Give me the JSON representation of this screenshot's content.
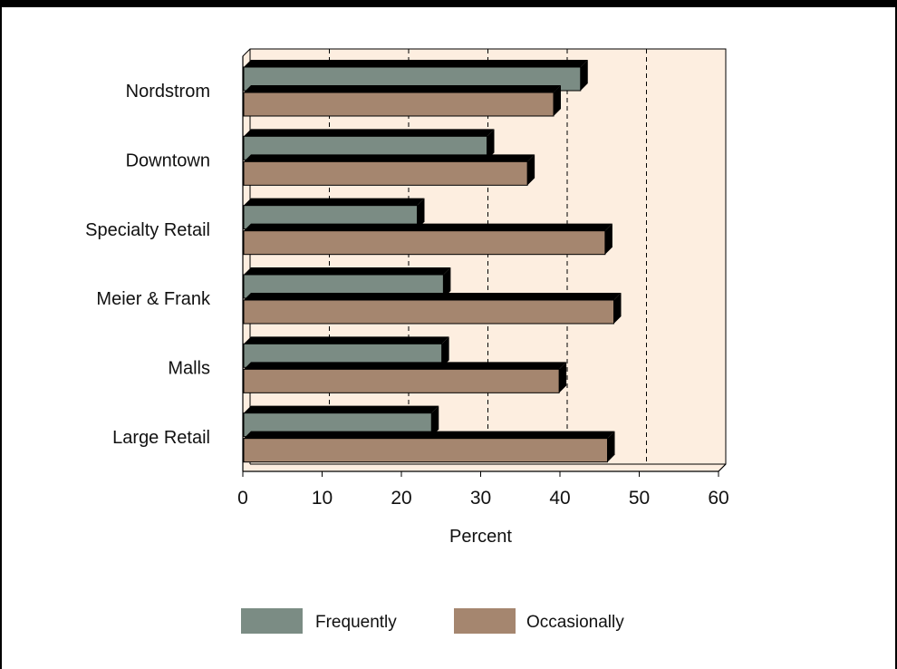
{
  "chart_data": {
    "type": "bar",
    "orientation": "horizontal",
    "categories": [
      "Nordstrom",
      "Downtown",
      "Specialty Retail",
      "Meier & Frank",
      "Malls",
      "Large Retail"
    ],
    "series": [
      {
        "name": "Frequently",
        "values": [
          42.6,
          30.8,
          22.0,
          25.3,
          25.1,
          23.8
        ],
        "color": "#7b8c84"
      },
      {
        "name": "Occasionally",
        "values": [
          39.2,
          35.9,
          45.7,
          46.8,
          39.9,
          46.0
        ],
        "color": "#a5866f"
      }
    ],
    "xlabel": "Percent",
    "xlim": [
      0,
      60
    ],
    "xticks": [
      0,
      10,
      20,
      30,
      40,
      50,
      60
    ],
    "gridlines": "dashed vertical",
    "plot_background": "#fdeee0",
    "legend_position": "bottom",
    "style": "3d"
  }
}
